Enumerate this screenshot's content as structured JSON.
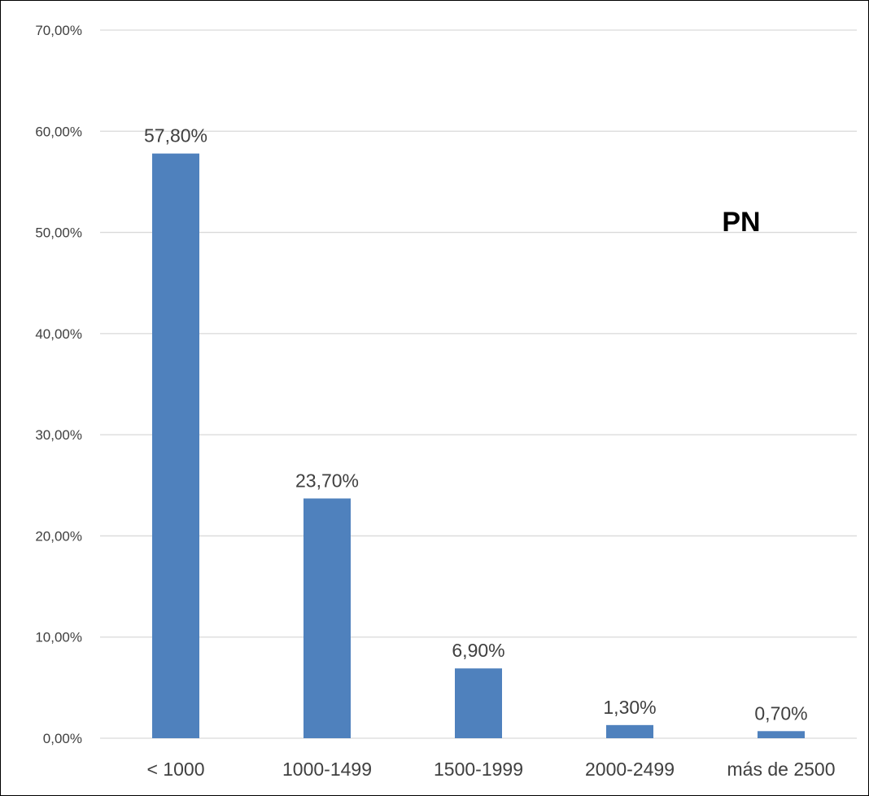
{
  "chart_data": {
    "type": "bar",
    "categories": [
      "< 1000",
      "1000-1499",
      "1500-1999",
      "2000-2499",
      "más de 2500"
    ],
    "values": [
      57.8,
      23.7,
      6.9,
      1.3,
      0.7
    ],
    "data_labels": [
      "57,80%",
      "23,70%",
      "6,90%",
      "1,30%",
      "0,70%"
    ],
    "y_ticks": [
      0,
      10,
      20,
      30,
      40,
      50,
      60,
      70
    ],
    "y_tick_labels": [
      "0,00%",
      "10,00%",
      "20,00%",
      "30,00%",
      "40,00%",
      "50,00%",
      "60,00%",
      "70,00%"
    ],
    "ylim": [
      0,
      70
    ],
    "annotation": "PN",
    "grid": true,
    "legend": "none",
    "colors": {
      "bar": "#4f81bd",
      "grid": "#d9d9d9",
      "axis": "#d9d9d9",
      "text": "#404040"
    }
  }
}
